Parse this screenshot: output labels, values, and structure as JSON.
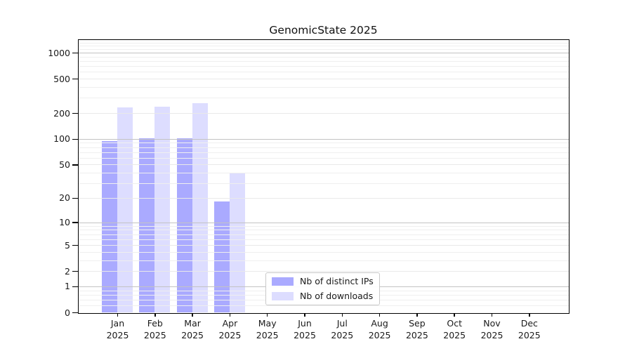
{
  "chart_data": {
    "type": "bar",
    "title": "GenomicState 2025",
    "months": [
      "Jan",
      "Feb",
      "Mar",
      "Apr",
      "May",
      "Jun",
      "Jul",
      "Aug",
      "Sep",
      "Oct",
      "Nov",
      "Dec"
    ],
    "year_label": "2025",
    "series": [
      {
        "name": "Nb of distinct IPs",
        "color": "#aaaaff",
        "values": [
          94,
          101,
          101,
          18,
          null,
          null,
          null,
          null,
          null,
          null,
          null,
          null
        ]
      },
      {
        "name": "Nb of downloads",
        "color": "#ddddff",
        "values": [
          233,
          239,
          258,
          40,
          null,
          null,
          null,
          null,
          null,
          null,
          null,
          null
        ]
      }
    ],
    "yscale": "log1p",
    "yticks": [
      0,
      1,
      2,
      5,
      10,
      20,
      50,
      100,
      200,
      500,
      1000
    ],
    "minor_yticks": [
      0.2,
      0.4,
      0.6,
      0.8,
      3,
      4,
      6,
      7,
      8,
      9,
      30,
      40,
      60,
      70,
      80,
      90,
      300,
      400,
      600,
      700,
      800,
      900,
      1100,
      1200,
      1300
    ],
    "ylim": [
      0,
      1390
    ],
    "xlabel": "",
    "ylabel": "",
    "grid": true,
    "legend_position": "lower-center",
    "colors": {
      "grid_major": "#c3c3c3",
      "grid_minor": "#efefef",
      "grid_labeled": "#e9e9e9",
      "axis": "#000000",
      "text": "#1a1a1a"
    }
  }
}
